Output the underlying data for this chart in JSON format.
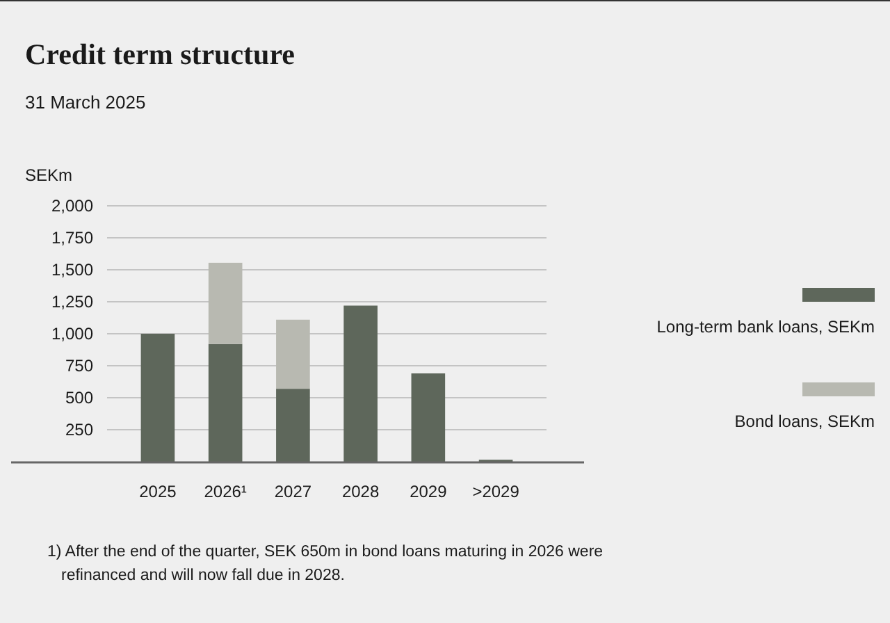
{
  "chart_data": {
    "type": "bar",
    "title": "Credit term structure",
    "subtitle": "31 March 2025",
    "ylabel": "SEKm",
    "categories": [
      "2025",
      "2026¹",
      "2027",
      "2028",
      "2029",
      ">2029"
    ],
    "stacked": true,
    "series": [
      {
        "name": "Long-term bank loans, SEKm",
        "color": "#5e675b",
        "values": [
          1000,
          920,
          570,
          1220,
          690,
          15
        ]
      },
      {
        "name": "Bond loans, SEKm",
        "color": "#b8b9b1",
        "values": [
          null,
          635,
          540,
          null,
          null,
          null
        ]
      }
    ],
    "ylim": [
      0,
      2000
    ],
    "yticks": [
      250,
      500,
      750,
      {
        "value": 1000,
        "label": "1,000"
      },
      {
        "value": 1250,
        "label": "1,250"
      },
      {
        "value": 1500,
        "label": "1,500"
      },
      {
        "value": 1750,
        "label": "1,750"
      },
      {
        "value": 2000,
        "label": "2,000"
      }
    ],
    "grid": "y",
    "legend": "right",
    "annotations": [
      "1) After the end of the quarter, SEK 650m in bond loans maturing in 2026 were refinanced and will now fall due in 2028."
    ]
  }
}
